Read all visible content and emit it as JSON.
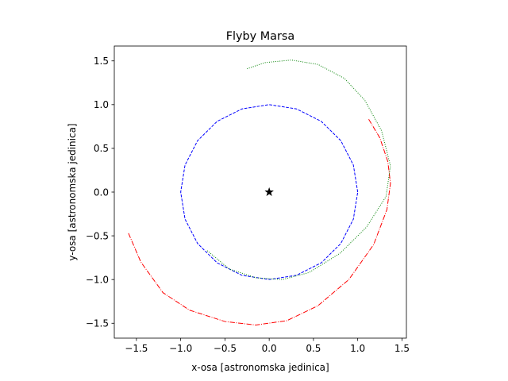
{
  "chart_data": {
    "type": "line",
    "title": "Flyby Marsa",
    "xlabel": "x-osa [astronomska jedinica]",
    "ylabel": "y-osa [astronomska jedinica]",
    "xlim": [
      -1.75,
      1.55
    ],
    "ylim": [
      -1.67,
      1.67
    ],
    "xticks": [
      -1.5,
      -1.0,
      -0.5,
      0.0,
      0.5,
      1.0,
      1.5
    ],
    "yticks": [
      -1.5,
      -1.0,
      -0.5,
      0.0,
      0.5,
      1.0,
      1.5
    ],
    "xtick_labels": [
      "−1.5",
      "−1.0",
      "−0.5",
      "0.0",
      "0.5",
      "1.0",
      "1.5"
    ],
    "ytick_labels": [
      "−1.5",
      "−1.0",
      "−0.5",
      "0.0",
      "0.5",
      "1.0",
      "1.5"
    ],
    "grid": false,
    "series": [
      {
        "color": "#0000ff",
        "dash": "dashed",
        "points": [
          [
            1.0,
            0.0
          ],
          [
            0.951,
            0.309
          ],
          [
            0.809,
            0.588
          ],
          [
            0.588,
            0.809
          ],
          [
            0.309,
            0.951
          ],
          [
            0.0,
            1.0
          ],
          [
            -0.309,
            0.951
          ],
          [
            -0.588,
            0.809
          ],
          [
            -0.809,
            0.588
          ],
          [
            -0.951,
            0.309
          ],
          [
            -1.0,
            0.0
          ],
          [
            -0.951,
            -0.309
          ],
          [
            -0.809,
            -0.588
          ],
          [
            -0.588,
            -0.809
          ],
          [
            -0.309,
            -0.951
          ],
          [
            0.0,
            -1.0
          ],
          [
            0.309,
            -0.951
          ],
          [
            0.588,
            -0.809
          ],
          [
            0.809,
            -0.588
          ],
          [
            0.951,
            -0.309
          ],
          [
            1.0,
            0.0
          ]
        ]
      },
      {
        "color": "#ff0000",
        "dash": "dashdot",
        "points": [
          [
            -1.59,
            -0.47
          ],
          [
            -1.45,
            -0.8
          ],
          [
            -1.2,
            -1.15
          ],
          [
            -0.9,
            -1.35
          ],
          [
            -0.5,
            -1.48
          ],
          [
            -0.15,
            -1.52
          ],
          [
            0.2,
            -1.47
          ],
          [
            0.55,
            -1.3
          ],
          [
            0.9,
            -1.0
          ],
          [
            1.18,
            -0.6
          ],
          [
            1.33,
            -0.2
          ],
          [
            1.37,
            0.1
          ],
          [
            1.34,
            0.35
          ],
          [
            1.25,
            0.62
          ],
          [
            1.12,
            0.84
          ]
        ]
      },
      {
        "color": "#008000",
        "dash": "dotted",
        "points": [
          [
            -0.7,
            -0.67
          ],
          [
            -0.45,
            -0.88
          ],
          [
            -0.15,
            -0.98
          ],
          [
            0.15,
            -1.0
          ],
          [
            0.45,
            -0.92
          ],
          [
            0.8,
            -0.7
          ],
          [
            1.1,
            -0.4
          ],
          [
            1.32,
            -0.05
          ],
          [
            1.37,
            0.3
          ],
          [
            1.27,
            0.7
          ],
          [
            1.08,
            1.05
          ],
          [
            0.85,
            1.3
          ],
          [
            0.55,
            1.46
          ],
          [
            0.25,
            1.51
          ],
          [
            -0.05,
            1.48
          ],
          [
            -0.25,
            1.41
          ]
        ]
      }
    ],
    "marker": {
      "x": 0.0,
      "y": 0.0,
      "symbol": "star",
      "color": "#000000"
    }
  }
}
